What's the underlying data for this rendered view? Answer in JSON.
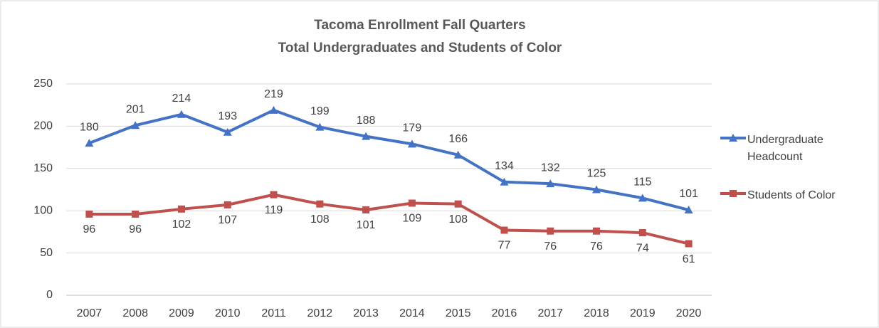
{
  "chart_data": {
    "type": "line",
    "title": [
      "Tacoma Enrollment Fall Quarters",
      "Total Undergraduates and Students of Color"
    ],
    "categories": [
      "2007",
      "2008",
      "2009",
      "2010",
      "2011",
      "2012",
      "2013",
      "2014",
      "2015",
      "2016",
      "2017",
      "2018",
      "2019",
      "2020"
    ],
    "series": [
      {
        "name": "Undergraduate Headcount",
        "color": "#4472c4",
        "marker": "triangle",
        "label_position": "above",
        "values": [
          180,
          201,
          214,
          193,
          219,
          199,
          188,
          179,
          166,
          134,
          132,
          125,
          115,
          101
        ]
      },
      {
        "name": "Students of Color",
        "color": "#c0504d",
        "marker": "square",
        "label_position": "below",
        "values": [
          96,
          96,
          102,
          107,
          119,
          108,
          101,
          109,
          108,
          77,
          76,
          76,
          74,
          61
        ]
      }
    ],
    "ylim": [
      0,
      250
    ],
    "yticks": [
      0,
      50,
      100,
      150,
      200,
      250
    ],
    "grid": true,
    "legend": "right"
  }
}
